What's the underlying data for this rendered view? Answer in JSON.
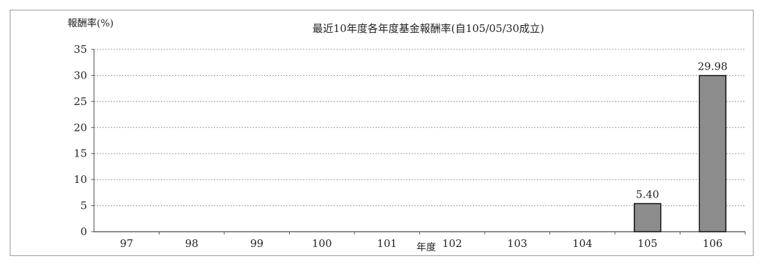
{
  "chart_data": {
    "type": "bar",
    "title": "最近10年度各年度基金報酬率(自105/05/30成立)",
    "ylabel": "報酬率(%)",
    "xlabel": "年度",
    "categories": [
      "97",
      "98",
      "99",
      "100",
      "101",
      "102",
      "103",
      "104",
      "105",
      "106"
    ],
    "values": [
      null,
      null,
      null,
      null,
      null,
      null,
      null,
      null,
      5.4,
      29.98
    ],
    "data_labels": [
      "",
      "",
      "",
      "",
      "",
      "",
      "",
      "",
      "5.40",
      "29.98"
    ],
    "ylim": [
      0,
      35
    ],
    "yticks": [
      0,
      5,
      10,
      15,
      20,
      25,
      30,
      35
    ],
    "grid": true,
    "bar_color": "#8c8c8c"
  }
}
